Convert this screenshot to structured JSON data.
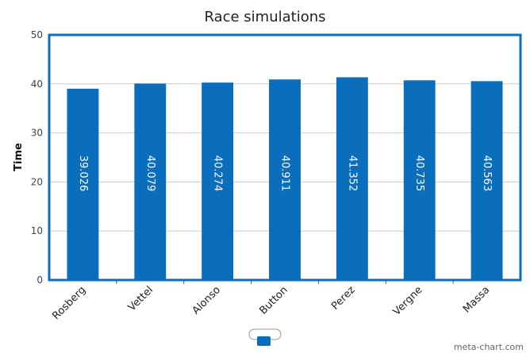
{
  "chart_data": {
    "type": "bar",
    "title": "Race simulations",
    "xlabel": "",
    "ylabel": "Time",
    "categories": [
      "Rosberg",
      "Vettel",
      "Alonso",
      "Button",
      "Perez",
      "Vergne",
      "Massa"
    ],
    "series": [
      {
        "values": [
          39.026,
          40.079,
          40.274,
          40.911,
          41.352,
          40.735,
          40.563
        ]
      }
    ],
    "data_labels": [
      "39.026",
      "40.079",
      "40.274",
      "40.911",
      "41.352",
      "40.735",
      "40.563"
    ],
    "ylim": [
      0,
      50
    ],
    "yticks": [
      0,
      10,
      20,
      30,
      40,
      50
    ],
    "grid": true,
    "legend": "bottom-center",
    "colors": {
      "bar": "#0a6ebd",
      "frame": "#0a6ebd",
      "grid": "#cccccc"
    }
  },
  "watermark": "meta-chart.com"
}
